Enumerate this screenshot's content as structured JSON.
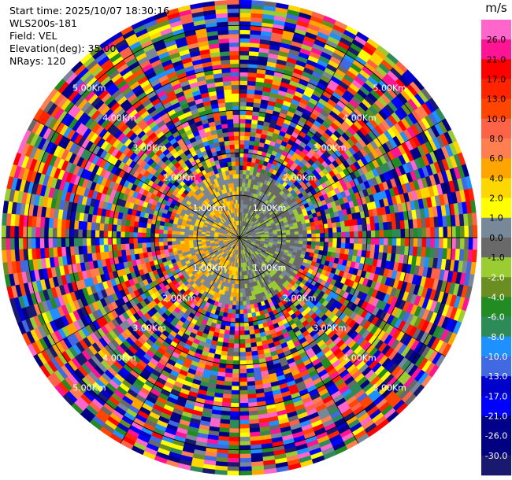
{
  "header": {
    "start_time": "Start time: 2025/10/07 18:30:16",
    "instrument": "WLS200s-181",
    "field": "Field: VEL",
    "elevation": "Elevation(deg): 35.00",
    "nrays": "NRays: 120"
  },
  "chart_data": {
    "type": "heatmap",
    "projection": "polar-ppi",
    "field": "VEL",
    "units": "m/s",
    "nrays": 120,
    "elevation_deg": 35.0,
    "range_rings_km": [
      1.0,
      2.0,
      3.0,
      4.0,
      5.0
    ],
    "ring_labels": [
      "1.00Km",
      "2.00Km",
      "3.00Km",
      "4.00Km",
      "5.00Km"
    ],
    "max_range_km": 5.6,
    "gate_km": 0.1,
    "near_field": {
      "within_km": 1.6,
      "west_sector_values_m_s": [
        0.0,
        0.0,
        2.0,
        4.0
      ],
      "east_sector_values_m_s": [
        0.0,
        -1.0,
        -2.0,
        -1.0
      ]
    },
    "far_field": {
      "from_km": 1.6,
      "pattern": "noise",
      "value_range_m_s": [
        -30.0,
        26.0
      ]
    },
    "colorbar": {
      "label": "m/s",
      "ticks": [
        "26.0",
        "21.0",
        "17.0",
        "13.0",
        "10.0",
        "8.0",
        "6.0",
        "4.0",
        "2.0",
        "1.0",
        "0.0",
        "-1.0",
        "-2.0",
        "-4.0",
        "-6.0",
        "-8.0",
        "-10.0",
        "-13.0",
        "-17.0",
        "-21.0",
        "-26.0",
        "-30.0"
      ],
      "colors": [
        "#ff66cc",
        "#ff1493",
        "#ff0000",
        "#ff2400",
        "#ff4500",
        "#ff6347",
        "#ff7f50",
        "#ffa500",
        "#ffd700",
        "#ffff00",
        "#778899",
        "#696969",
        "#9acd32",
        "#6b8e23",
        "#228b22",
        "#2e8b57",
        "#1e90ff",
        "#4169e1",
        "#0000cd",
        "#0000ff",
        "#00008b",
        "#000080",
        "#191970"
      ]
    }
  }
}
